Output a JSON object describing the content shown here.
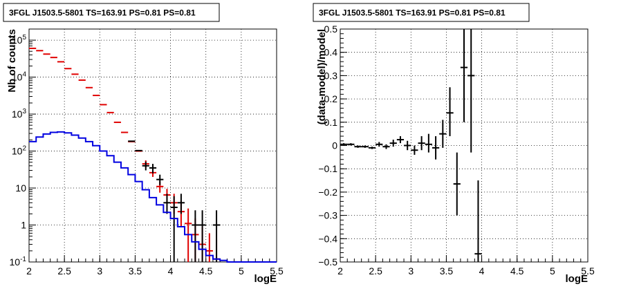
{
  "chart_data": [
    {
      "type": "step+errorbar",
      "title": "3FGL J1503.5-5801 TS=163.91 PS=0.81 PS=0.81",
      "xlabel": "logE",
      "ylabel": "Nb of counts",
      "xlim": [
        2,
        5.5
      ],
      "ylim": [
        0.1,
        200000
      ],
      "yscale": "log",
      "grid": true,
      "xticks": [
        "2",
        "2.5",
        "3",
        "3.5",
        "4",
        "4.5",
        "5",
        "5.5"
      ],
      "yticks": [
        "10^{-1}",
        "1",
        "10",
        "10^{2}",
        "10^{3}",
        "10^{4}",
        "10^{5}"
      ],
      "series": [
        {
          "color": "#e00000",
          "style": "errorbar",
          "points": [
            {
              "x": 2.05,
              "y": 60000
            },
            {
              "x": 2.15,
              "y": 52000
            },
            {
              "x": 2.25,
              "y": 42000
            },
            {
              "x": 2.35,
              "y": 34000
            },
            {
              "x": 2.45,
              "y": 26000
            },
            {
              "x": 2.55,
              "y": 17000
            },
            {
              "x": 2.65,
              "y": 12000
            },
            {
              "x": 2.75,
              "y": 8300
            },
            {
              "x": 2.85,
              "y": 5200
            },
            {
              "x": 2.95,
              "y": 3200
            },
            {
              "x": 3.05,
              "y": 1800
            },
            {
              "x": 3.15,
              "y": 1100
            },
            {
              "x": 3.25,
              "y": 600
            },
            {
              "x": 3.35,
              "y": 320
            },
            {
              "x": 3.45,
              "y": 180
            },
            {
              "x": 3.55,
              "y": 100
            },
            {
              "x": 3.65,
              "y": 45,
              "lo": 36,
              "hi": 56
            },
            {
              "x": 3.75,
              "y": 26,
              "lo": 20,
              "hi": 34
            },
            {
              "x": 3.85,
              "y": 11,
              "lo": 7.5,
              "hi": 15
            },
            {
              "x": 3.95,
              "y": 6.5,
              "lo": 4,
              "hi": 9.5
            },
            {
              "x": 4.05,
              "y": 4,
              "lo": 2,
              "hi": 7
            },
            {
              "x": 4.15,
              "y": 2.3,
              "lo": 0.9,
              "hi": 4.6
            },
            {
              "x": 4.25,
              "y": 1.1,
              "lo": 0.1,
              "hi": 2.8
            },
            {
              "x": 4.35,
              "y": 0.55,
              "lo": 0.1,
              "hi": 1.5
            },
            {
              "x": 4.45,
              "y": 0.3,
              "lo": 0.1,
              "hi": 0.9
            },
            {
              "x": 4.55,
              "y": 0.2,
              "lo": 0.1,
              "hi": 0.6
            },
            {
              "x": 4.65,
              "y": 0.12,
              "lo": 0.1,
              "hi": 0.4
            }
          ]
        },
        {
          "color": "#000000",
          "style": "errorbar",
          "points": [
            {
              "x": 3.45,
              "y": 185
            },
            {
              "x": 3.55,
              "y": 103
            },
            {
              "x": 3.65,
              "y": 40,
              "lo": 30,
              "hi": 52
            },
            {
              "x": 3.75,
              "y": 35,
              "lo": 25,
              "hi": 45
            },
            {
              "x": 3.85,
              "y": 17,
              "lo": 12,
              "hi": 23
            },
            {
              "x": 3.95,
              "y": 4,
              "lo": 2,
              "hi": 7
            },
            {
              "x": 4.05,
              "y": 3,
              "lo": 0.1,
              "hi": 6
            },
            {
              "x": 4.15,
              "y": 4,
              "lo": 2,
              "hi": 7
            },
            {
              "x": 4.35,
              "y": 1,
              "lo": 0.1,
              "hi": 2.5
            },
            {
              "x": 4.45,
              "y": 1,
              "lo": 0.1,
              "hi": 2.5
            },
            {
              "x": 4.65,
              "y": 1,
              "lo": 0.1,
              "hi": 2.5
            }
          ]
        },
        {
          "color": "#0000e0",
          "style": "step",
          "binwidth": 0.1,
          "x": [
            2.0,
            2.1,
            2.2,
            2.3,
            2.4,
            2.5,
            2.6,
            2.7,
            2.8,
            2.9,
            3.0,
            3.1,
            3.2,
            3.3,
            3.4,
            3.5,
            3.6,
            3.7,
            3.8,
            3.9,
            4.0,
            4.1,
            4.2,
            4.3,
            4.4,
            4.5,
            4.6,
            4.7,
            4.8,
            4.9,
            5.0,
            5.1,
            5.2,
            5.3,
            5.4
          ],
          "values": [
            180,
            240,
            290,
            320,
            330,
            310,
            270,
            225,
            180,
            140,
            100,
            75,
            50,
            35,
            23,
            15,
            9,
            5.5,
            3.5,
            2.2,
            1.5,
            0.9,
            0.55,
            0.35,
            0.22,
            0.15,
            0.12,
            0.11,
            0.1,
            0.1,
            0.1,
            0.1,
            0.1,
            0.1,
            0.1
          ]
        }
      ]
    },
    {
      "type": "errorbar",
      "title": "3FGL J1503.5-5801 TS=163.91 PS=0.81 PS=0.81",
      "xlabel": "logE",
      "ylabel": "(data-model)/model",
      "xlim": [
        2,
        5.5
      ],
      "ylim": [
        -0.5,
        0.5
      ],
      "grid": true,
      "xticks": [
        "2",
        "2.5",
        "3",
        "3.5",
        "4",
        "4.5",
        "5",
        "5.5"
      ],
      "yticks": [
        "-0.5",
        "-0.4",
        "-0.3",
        "-0.2",
        "-0.1",
        "0",
        "0.1",
        "0.2",
        "0.3",
        "0.4",
        "0.5"
      ],
      "series": [
        {
          "color": "#000000",
          "points": [
            {
              "x": 2.05,
              "y": 0.005,
              "lo": 0.0,
              "hi": 0.01
            },
            {
              "x": 2.15,
              "y": 0.005,
              "lo": 0.0,
              "hi": 0.01
            },
            {
              "x": 2.25,
              "y": -0.005,
              "lo": -0.01,
              "hi": 0.0
            },
            {
              "x": 2.35,
              "y": -0.005,
              "lo": -0.01,
              "hi": 0.0
            },
            {
              "x": 2.45,
              "y": -0.01,
              "lo": -0.015,
              "hi": -0.005
            },
            {
              "x": 2.55,
              "y": 0.005,
              "lo": -0.005,
              "hi": 0.015
            },
            {
              "x": 2.65,
              "y": -0.005,
              "lo": -0.015,
              "hi": 0.005
            },
            {
              "x": 2.75,
              "y": 0.01,
              "lo": -0.005,
              "hi": 0.025
            },
            {
              "x": 2.85,
              "y": 0.025,
              "lo": 0.01,
              "hi": 0.04
            },
            {
              "x": 2.95,
              "y": 0.0,
              "lo": -0.02,
              "hi": 0.02
            },
            {
              "x": 3.05,
              "y": -0.02,
              "lo": -0.04,
              "hi": 0.0
            },
            {
              "x": 3.15,
              "y": 0.01,
              "lo": -0.02,
              "hi": 0.04
            },
            {
              "x": 3.25,
              "y": 0.005,
              "lo": -0.03,
              "hi": 0.05
            },
            {
              "x": 3.35,
              "y": -0.01,
              "lo": -0.06,
              "hi": 0.04
            },
            {
              "x": 3.45,
              "y": 0.05,
              "lo": -0.01,
              "hi": 0.11
            },
            {
              "x": 3.55,
              "y": 0.14,
              "lo": 0.04,
              "hi": 0.25
            },
            {
              "x": 3.65,
              "y": -0.165,
              "lo": -0.3,
              "hi": -0.03
            },
            {
              "x": 3.75,
              "y": 0.335,
              "lo": 0.1,
              "hi": 0.5
            },
            {
              "x": 3.85,
              "y": 0.3,
              "lo": -0.03,
              "hi": 0.5
            },
            {
              "x": 3.95,
              "y": -0.465,
              "lo": -0.5,
              "hi": -0.15
            }
          ]
        }
      ]
    }
  ]
}
